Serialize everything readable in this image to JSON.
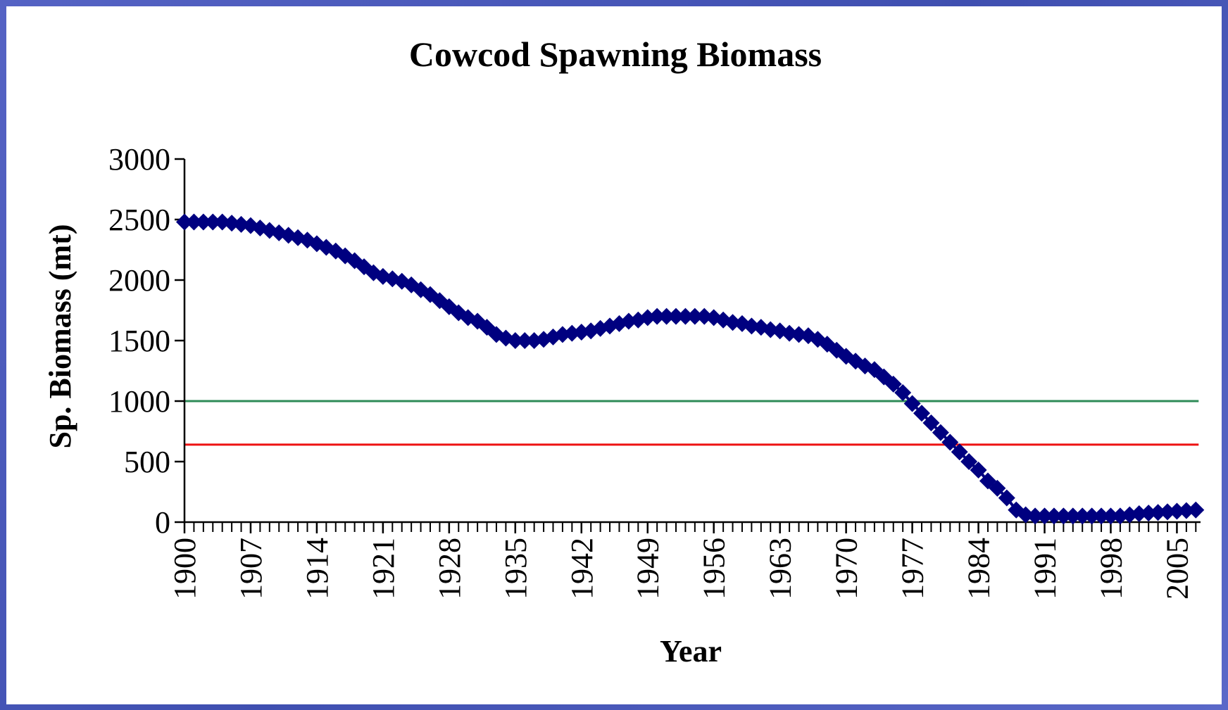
{
  "chart_data": {
    "type": "line",
    "title": "Cowcod Spawning Biomass",
    "x_label": "Year",
    "y_label": "Sp. Biomass (mt)",
    "x": [
      1900,
      1901,
      1902,
      1903,
      1904,
      1905,
      1906,
      1907,
      1908,
      1909,
      1910,
      1911,
      1912,
      1913,
      1914,
      1915,
      1916,
      1917,
      1918,
      1919,
      1920,
      1921,
      1922,
      1923,
      1924,
      1925,
      1926,
      1927,
      1928,
      1929,
      1930,
      1931,
      1932,
      1933,
      1934,
      1935,
      1936,
      1937,
      1938,
      1939,
      1940,
      1941,
      1942,
      1943,
      1944,
      1945,
      1946,
      1947,
      1948,
      1949,
      1950,
      1951,
      1952,
      1953,
      1954,
      1955,
      1956,
      1957,
      1958,
      1959,
      1960,
      1961,
      1962,
      1963,
      1964,
      1965,
      1966,
      1967,
      1968,
      1969,
      1970,
      1971,
      1972,
      1973,
      1974,
      1975,
      1976,
      1977,
      1978,
      1979,
      1980,
      1981,
      1982,
      1983,
      1984,
      1985,
      1986,
      1987,
      1988,
      1989,
      1990,
      1991,
      1992,
      1993,
      1994,
      1995,
      1996,
      1997,
      1998,
      1999,
      2000,
      2001,
      2002,
      2003,
      2004,
      2005,
      2006,
      2007
    ],
    "series": [
      {
        "name": "Spawning Biomass",
        "color": "#000080",
        "values": [
          2480,
          2480,
          2480,
          2480,
          2480,
          2470,
          2460,
          2450,
          2430,
          2410,
          2390,
          2370,
          2350,
          2330,
          2300,
          2270,
          2240,
          2200,
          2160,
          2110,
          2060,
          2030,
          2010,
          1990,
          1960,
          1920,
          1880,
          1830,
          1780,
          1730,
          1690,
          1660,
          1610,
          1550,
          1520,
          1500,
          1500,
          1500,
          1510,
          1530,
          1550,
          1560,
          1570,
          1580,
          1600,
          1620,
          1640,
          1660,
          1670,
          1690,
          1700,
          1700,
          1700,
          1700,
          1700,
          1700,
          1690,
          1670,
          1650,
          1640,
          1620,
          1610,
          1590,
          1580,
          1560,
          1550,
          1540,
          1510,
          1470,
          1420,
          1370,
          1330,
          1290,
          1260,
          1200,
          1140,
          1070,
          980,
          900,
          820,
          740,
          660,
          580,
          500,
          430,
          340,
          280,
          200,
          100,
          60,
          50,
          50,
          50,
          50,
          50,
          50,
          50,
          50,
          50,
          50,
          60,
          70,
          75,
          80,
          85,
          90,
          95,
          100
        ]
      }
    ],
    "reference_lines": [
      {
        "value": 1000,
        "color": "#2e8b57"
      },
      {
        "value": 640,
        "color": "#ee1111"
      }
    ],
    "xlim": [
      1900,
      2007.5
    ],
    "xticks": [
      1900,
      1907,
      1914,
      1921,
      1928,
      1935,
      1942,
      1949,
      1956,
      1963,
      1970,
      1977,
      1984,
      1991,
      1998,
      2005
    ],
    "ylim": [
      0,
      3000
    ],
    "yticks": [
      0,
      500,
      1000,
      1500,
      2000,
      2500,
      3000
    ]
  }
}
